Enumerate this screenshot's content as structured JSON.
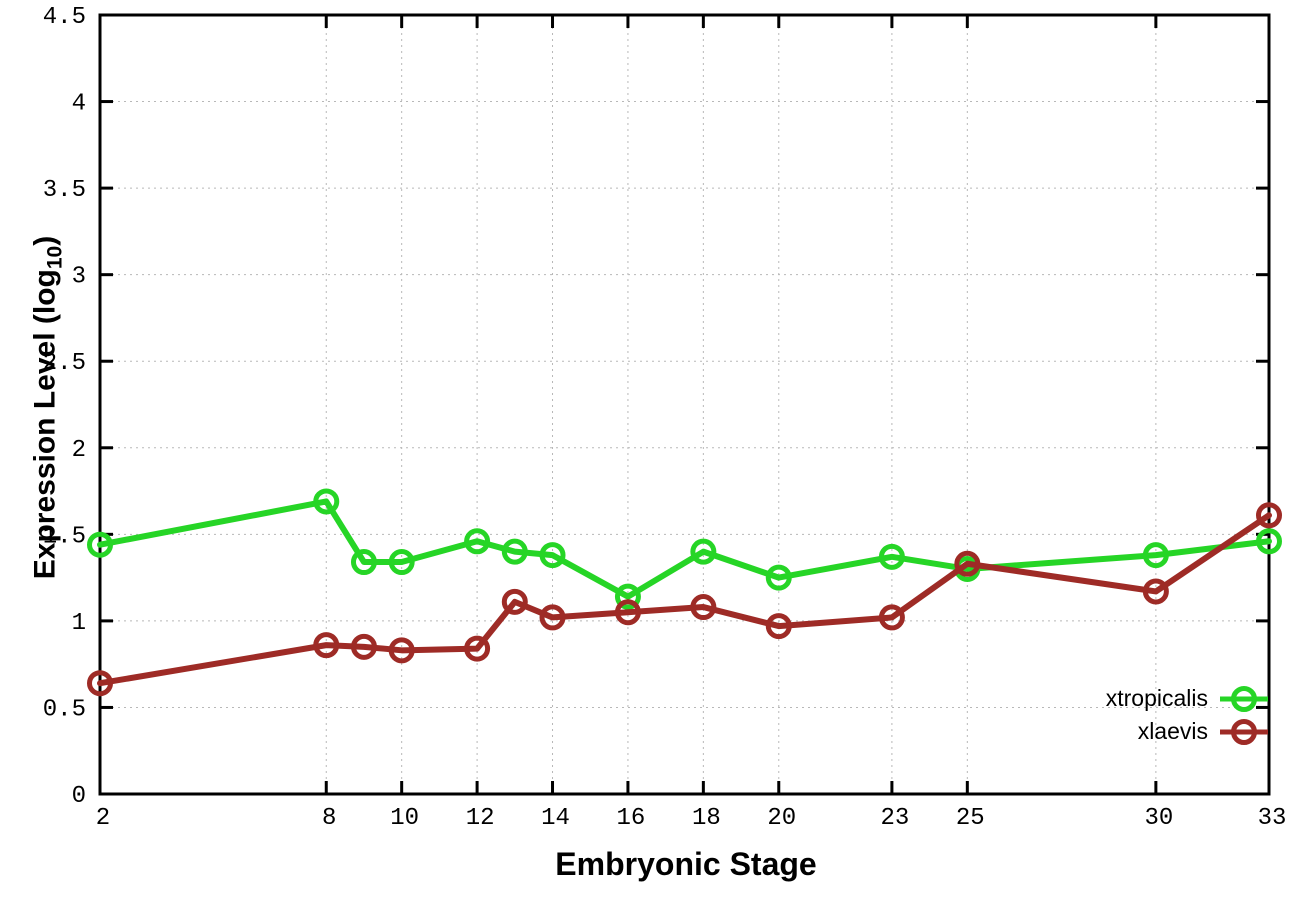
{
  "chart_data": {
    "type": "line",
    "title": "",
    "xlabel": "Embryonic Stage",
    "ylabel": "Expression Level (log10)",
    "ylabel_parts": {
      "main": "Expression Level (log",
      "sub": "10",
      "close": ")"
    },
    "x": [
      2,
      8,
      9,
      10,
      12,
      13,
      14,
      16,
      18,
      20,
      23,
      25,
      30,
      33
    ],
    "series": [
      {
        "name": "xtropicalis",
        "color": "#26d526",
        "values": [
          1.44,
          1.69,
          1.34,
          1.34,
          1.46,
          1.4,
          1.38,
          1.14,
          1.4,
          1.25,
          1.37,
          1.3,
          1.38,
          1.46
        ]
      },
      {
        "name": "xlaevis",
        "color": "#9e2b26",
        "values": [
          0.64,
          0.86,
          0.85,
          0.83,
          0.84,
          1.11,
          1.02,
          1.05,
          1.08,
          0.97,
          1.02,
          1.33,
          1.17,
          1.61
        ]
      }
    ],
    "xlim": [
      2,
      33
    ],
    "ylim": [
      0,
      4.5
    ],
    "xticks": [
      2,
      8,
      10,
      12,
      14,
      16,
      18,
      20,
      23,
      25,
      30,
      33
    ],
    "xtick_labels": [
      "2",
      "8",
      "10",
      "12",
      "14",
      "16",
      "18",
      "20",
      "23",
      "25",
      "30",
      "33"
    ],
    "yticks": [
      0,
      0.5,
      1,
      1.5,
      2,
      2.5,
      3,
      3.5,
      4,
      4.5
    ],
    "ytick_labels": [
      "0",
      "0.5",
      "1",
      "1.5",
      "2",
      "2.5",
      "3",
      "3.5",
      "4",
      "4.5"
    ],
    "grid": true,
    "legend_position": "inside-bottom-right",
    "legend_entries": [
      "xtropicalis",
      "xlaevis"
    ]
  },
  "colors": {
    "background": "#ffffff",
    "axis": "#000000",
    "grid": "#b8b8b8",
    "xtropicalis": "#26d526",
    "xlaevis": "#9e2b26"
  }
}
